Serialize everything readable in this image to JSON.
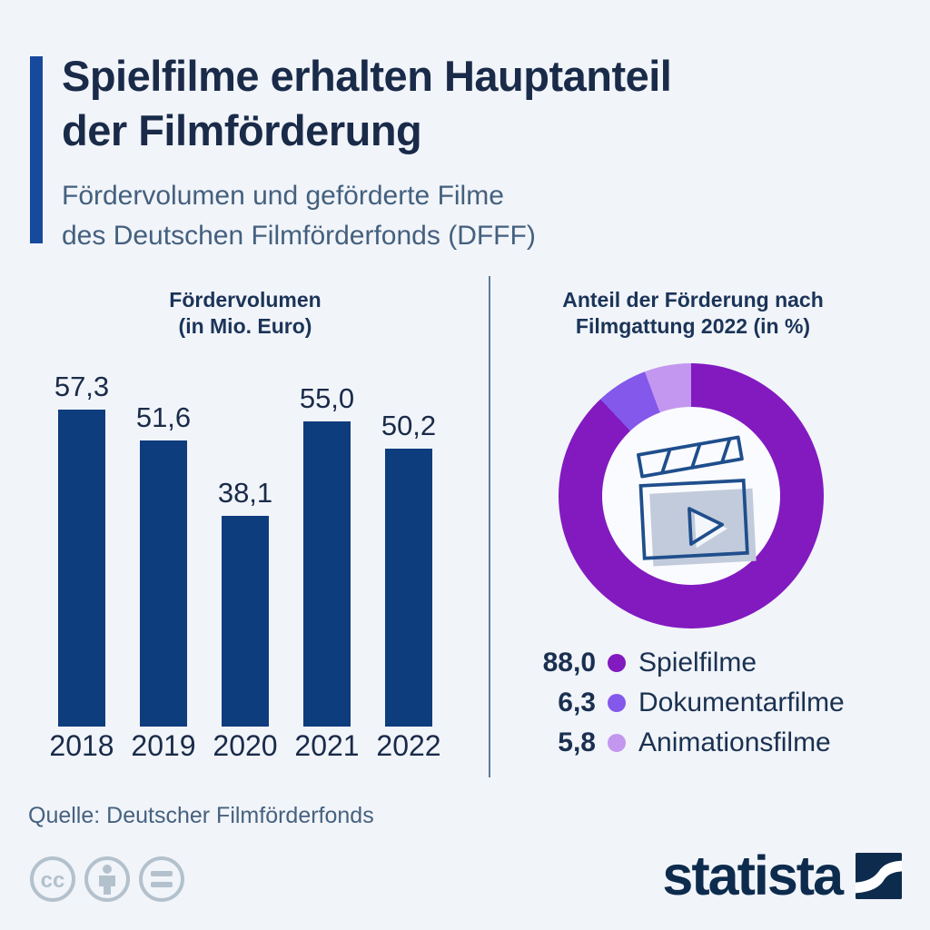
{
  "header": {
    "title_line1": "Spielfilme erhalten Hauptanteil",
    "title_line2": "der Filmförderung",
    "subtitle_line1": "Fördervolumen und geförderte Filme",
    "subtitle_line2": "des Deutschen Filmförderfonds (DFFF)"
  },
  "chart_data": [
    {
      "type": "bar",
      "title_line1": "Fördervolumen",
      "title_line2": "(in Mio. Euro)",
      "categories": [
        "2018",
        "2019",
        "2020",
        "2021",
        "2022"
      ],
      "values": [
        57.3,
        51.6,
        38.1,
        55.0,
        50.2
      ],
      "value_labels": [
        "57,3",
        "51,6",
        "38,1",
        "55,0",
        "50,2"
      ],
      "bar_color": "#0E3D7E",
      "xlabel": "",
      "ylabel": "Fördervolumen in Mio. Euro",
      "ylim": [
        0,
        60
      ],
      "grid": false,
      "legend": "none"
    },
    {
      "type": "pie",
      "subtype": "donut",
      "title_line1": "Anteil der Förderung nach",
      "title_line2": "Filmgattung 2022 (in %)",
      "start_angle_deg": 0,
      "direction": "clockwise",
      "segments": [
        {
          "label": "Spielfilme",
          "value": 88.0,
          "value_label": "88,0",
          "color": "#821AC0"
        },
        {
          "label": "Dokumentarfilme",
          "value": 6.3,
          "value_label": "6,3",
          "color": "#8458EA"
        },
        {
          "label": "Animationsfilme",
          "value": 5.8,
          "value_label": "5,8",
          "color": "#C397EF"
        }
      ],
      "center_icon": "film-clapperboard-icon",
      "legend": "below-right with values"
    }
  ],
  "source": {
    "text": "Quelle: Deutscher Filmförderfonds"
  },
  "footer": {
    "license_icons": [
      "cc-icon",
      "attribution-person-icon",
      "equal-sign-icon"
    ],
    "brand": "statista"
  },
  "colors": {
    "background": "#F1F4F9",
    "accent_bar": "#17499C",
    "title_text": "#1A2B49",
    "subtitle_text": "#44607E",
    "bar_navy": "#0E3D7E",
    "divider": "#5E7B98",
    "donut_spielfilme": "#821AC0",
    "donut_dokumentarfilme": "#8458EA",
    "donut_animationsfilme": "#C397EF",
    "license_icon_gray": "#B3C1CD",
    "statista_navy": "#0D2B4D"
  }
}
